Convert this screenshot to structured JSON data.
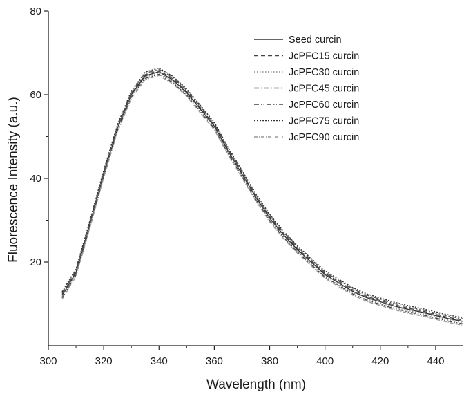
{
  "chart_data": {
    "type": "line",
    "title": "",
    "xlabel": "Wavelength (nm)",
    "ylabel": "Fluorescence Intensity (a.u.)",
    "xlim": [
      300,
      450
    ],
    "ylim": [
      0,
      80
    ],
    "x_ticks": [
      300,
      320,
      340,
      360,
      380,
      400,
      420,
      440
    ],
    "y_ticks": [
      20,
      40,
      60,
      80
    ],
    "grid": false,
    "legend_position": "top-right",
    "x": [
      305,
      310,
      315,
      320,
      325,
      330,
      335,
      340,
      345,
      350,
      355,
      360,
      365,
      370,
      375,
      380,
      385,
      390,
      395,
      400,
      405,
      410,
      415,
      420,
      425,
      430,
      435,
      440,
      445,
      450
    ],
    "series": [
      {
        "name": "Seed curcin",
        "color": "#333333",
        "dash": "",
        "values": [
          12.0,
          17.5,
          29.0,
          41.0,
          52.0,
          60.0,
          64.5,
          65.5,
          63.5,
          60.5,
          56.5,
          52.5,
          46.5,
          41.0,
          35.5,
          30.5,
          26.5,
          23.0,
          20.0,
          17.0,
          15.0,
          13.0,
          11.5,
          10.5,
          9.5,
          8.7,
          8.0,
          7.2,
          6.4,
          5.8
        ]
      },
      {
        "name": "JcPFC15 curcin",
        "color": "#444444",
        "dash": "6,4",
        "values": [
          12.3,
          17.8,
          29.3,
          41.3,
          52.3,
          60.3,
          64.8,
          65.8,
          63.8,
          60.8,
          56.8,
          52.8,
          46.8,
          41.3,
          35.8,
          30.8,
          26.8,
          23.3,
          20.3,
          17.3,
          15.3,
          13.3,
          11.8,
          10.8,
          9.8,
          9.0,
          8.3,
          7.5,
          6.7,
          6.1
        ]
      },
      {
        "name": "JcPFC30 curcin",
        "color": "#888888",
        "dash": "1.5,2.5",
        "values": [
          11.7,
          17.2,
          28.7,
          40.7,
          51.7,
          59.7,
          64.2,
          65.2,
          63.2,
          60.2,
          56.2,
          52.2,
          46.2,
          40.7,
          35.2,
          30.2,
          26.2,
          22.7,
          19.7,
          16.7,
          14.7,
          12.7,
          11.2,
          10.2,
          9.2,
          8.4,
          7.7,
          6.9,
          6.1,
          5.5
        ]
      },
      {
        "name": "JcPFC45 curcin",
        "color": "#555555",
        "dash": "7,3,1.5,3",
        "values": [
          12.6,
          18.1,
          29.6,
          41.6,
          52.6,
          60.6,
          65.1,
          66.1,
          64.1,
          61.1,
          57.1,
          53.1,
          47.1,
          41.6,
          36.1,
          31.1,
          27.1,
          23.6,
          20.6,
          17.6,
          15.6,
          13.6,
          12.1,
          11.1,
          10.1,
          9.3,
          8.6,
          7.8,
          7.0,
          6.4
        ]
      },
      {
        "name": "JcPFC60 curcin",
        "color": "#444444",
        "dash": "7,3,1.5,2,1.5,3",
        "values": [
          11.4,
          16.9,
          28.4,
          40.4,
          51.4,
          59.4,
          63.9,
          64.9,
          62.9,
          59.9,
          55.9,
          51.9,
          45.9,
          40.4,
          34.9,
          29.9,
          25.9,
          22.4,
          19.4,
          16.4,
          14.4,
          12.4,
          10.9,
          9.9,
          8.9,
          8.1,
          7.4,
          6.6,
          5.8,
          5.2
        ]
      },
      {
        "name": "JcPFC75 curcin",
        "color": "#333333",
        "dash": "2,2",
        "values": [
          12.9,
          18.4,
          29.9,
          41.9,
          52.9,
          60.9,
          65.4,
          66.4,
          64.4,
          61.4,
          57.4,
          53.4,
          47.4,
          41.9,
          36.4,
          31.4,
          27.4,
          23.9,
          20.9,
          17.9,
          15.9,
          13.9,
          12.4,
          11.4,
          10.4,
          9.6,
          8.9,
          8.1,
          7.3,
          6.7
        ]
      },
      {
        "name": "JcPFC90 curcin",
        "color": "#999999",
        "dash": "5,2,1,2",
        "values": [
          11.1,
          16.6,
          28.1,
          40.1,
          51.1,
          59.1,
          63.6,
          64.6,
          62.6,
          59.6,
          55.6,
          51.6,
          45.6,
          40.1,
          34.6,
          29.6,
          25.6,
          22.1,
          19.1,
          16.1,
          14.1,
          12.1,
          10.6,
          9.6,
          8.6,
          7.8,
          7.1,
          6.3,
          5.5,
          4.9
        ]
      }
    ]
  }
}
